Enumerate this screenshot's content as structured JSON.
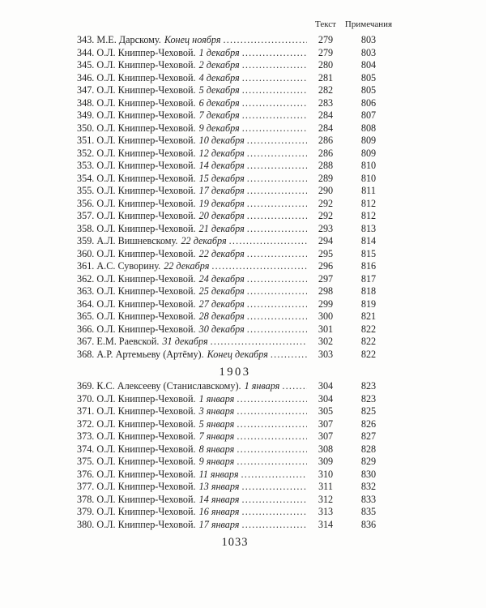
{
  "colors": {
    "ink": "#232323",
    "paper": "#fdfdfc"
  },
  "page": {
    "number": "1033"
  },
  "columns": {
    "text_label": "Текст",
    "notes_label": "Примечания"
  },
  "sections": [
    {
      "year": "",
      "entries": [
        {
          "name": "343. М.Е. Дарскому.",
          "date": "Конец ноября",
          "text": "279",
          "notes": "803"
        },
        {
          "name": "344. О.Л. Книппер-Чеховой.",
          "date": "1 декабря",
          "text": "279",
          "notes": "803"
        },
        {
          "name": "345. О.Л. Книппер-Чеховой.",
          "date": "2 декабря",
          "text": "280",
          "notes": "804"
        },
        {
          "name": "346. О.Л. Книппер-Чеховой.",
          "date": "4 декабря",
          "text": "281",
          "notes": "805"
        },
        {
          "name": "347. О.Л. Книппер-Чеховой.",
          "date": "5 декабря",
          "text": "282",
          "notes": "805"
        },
        {
          "name": "348. О.Л. Книппер-Чеховой.",
          "date": "6 декабря",
          "text": "283",
          "notes": "806"
        },
        {
          "name": "349. О.Л. Книппер-Чеховой.",
          "date": "7 декабря",
          "text": "284",
          "notes": "807"
        },
        {
          "name": "350. О.Л. Книппер-Чеховой.",
          "date": "9 декабря",
          "text": "284",
          "notes": "808"
        },
        {
          "name": "351. О.Л. Книппер-Чеховой.",
          "date": "10 декабря",
          "text": "286",
          "notes": "809"
        },
        {
          "name": "352. О.Л. Книппер-Чеховой.",
          "date": "12 декабря",
          "text": "286",
          "notes": "809"
        },
        {
          "name": "353. О.Л. Книппер-Чеховой.",
          "date": "14 декабря",
          "text": "288",
          "notes": "810"
        },
        {
          "name": "354. О.Л. Книппер-Чеховой.",
          "date": "15 декабря",
          "text": "289",
          "notes": "810"
        },
        {
          "name": "355. О.Л. Книппер-Чеховой.",
          "date": "17 декабря",
          "text": "290",
          "notes": "811"
        },
        {
          "name": "356. О.Л. Книппер-Чеховой.",
          "date": "19 декабря",
          "text": "292",
          "notes": "812"
        },
        {
          "name": "357. О.Л. Книппер-Чеховой.",
          "date": "20 декабря",
          "text": "292",
          "notes": "812"
        },
        {
          "name": "358. О.Л. Книппер-Чеховой.",
          "date": "21 декабря",
          "text": "293",
          "notes": "813"
        },
        {
          "name": "359. А.Л. Вишневскому.",
          "date": "22 декабря",
          "text": "294",
          "notes": "814"
        },
        {
          "name": "360. О.Л. Книппер-Чеховой.",
          "date": "22 декабря",
          "text": "295",
          "notes": "815"
        },
        {
          "name": "361. А.С. Суворину.",
          "date": "22 декабря",
          "text": "296",
          "notes": "816"
        },
        {
          "name": "362. О.Л. Книппер-Чеховой.",
          "date": "24 декабря",
          "text": "297",
          "notes": "817"
        },
        {
          "name": "363. О.Л. Книппер-Чеховой.",
          "date": "25 декабря",
          "text": "298",
          "notes": "818"
        },
        {
          "name": "364. О.Л. Книппер-Чеховой.",
          "date": "27 декабря",
          "text": "299",
          "notes": "819"
        },
        {
          "name": "365. О.Л. Книппер-Чеховой.",
          "date": "28 декабря",
          "text": "300",
          "notes": "821"
        },
        {
          "name": "366. О.Л. Книппер-Чеховой.",
          "date": "30 декабря",
          "text": "301",
          "notes": "822"
        },
        {
          "name": "367. Е.М. Раевской.",
          "date": "31 декабря",
          "text": "302",
          "notes": "822"
        },
        {
          "name": "368. А.Р. Артемьеву (Артёму).",
          "date": "Конец декабря",
          "text": "303",
          "notes": "822"
        }
      ]
    },
    {
      "year": "1903",
      "entries": [
        {
          "name": "369. К.С. Алексееву (Станиславскому).",
          "date": "1 января",
          "text": "304",
          "notes": "823"
        },
        {
          "name": "370. О.Л. Книппер-Чеховой.",
          "date": "1 января",
          "text": "304",
          "notes": "823"
        },
        {
          "name": "371. О.Л. Книппер-Чеховой.",
          "date": "3 января",
          "text": "305",
          "notes": "825"
        },
        {
          "name": "372. О.Л. Книппер-Чеховой.",
          "date": "5 января",
          "text": "307",
          "notes": "826"
        },
        {
          "name": "373. О.Л. Книппер-Чеховой.",
          "date": "7 января",
          "text": "307",
          "notes": "827"
        },
        {
          "name": "374. О.Л. Книппер-Чеховой.",
          "date": "8 января",
          "text": "308",
          "notes": "828"
        },
        {
          "name": "375. О.Л. Книппер-Чеховой.",
          "date": "9 января",
          "text": "309",
          "notes": "829"
        },
        {
          "name": "376. О.Л. Книппер-Чеховой.",
          "date": "11 января",
          "text": "310",
          "notes": "830"
        },
        {
          "name": "377. О.Л. Книппер-Чеховой.",
          "date": "13 января",
          "text": "311",
          "notes": "832"
        },
        {
          "name": "378. О.Л. Книппер-Чеховой.",
          "date": "14 января",
          "text": "312",
          "notes": "833"
        },
        {
          "name": "379. О.Л. Книппер-Чеховой.",
          "date": "16 января",
          "text": "313",
          "notes": "835"
        },
        {
          "name": "380. О.Л. Книппер-Чеховой.",
          "date": "17 января",
          "text": "314",
          "notes": "836"
        }
      ]
    }
  ]
}
